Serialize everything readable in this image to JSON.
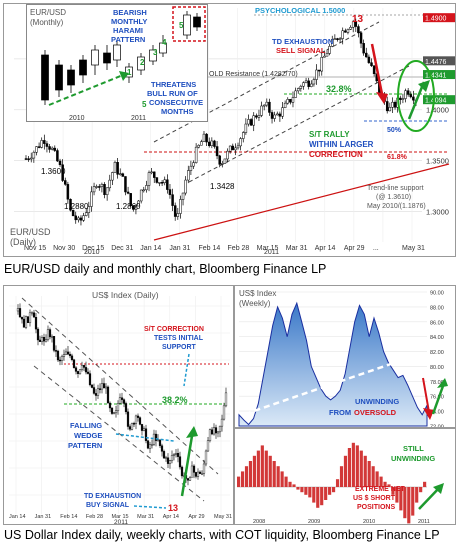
{
  "captions": {
    "top": "EUR/USD daily and monthly chart, Bloomberg Finance LP",
    "bottom": "US Dollar Index daily, weekly charts, with COT liquidity, Bloomberg Finance LP"
  },
  "colors": {
    "up_candle": "#ffffff",
    "down_candle": "#000000",
    "annotation_blue": "#1f4fbf",
    "annotation_red": "#d4141c",
    "annotation_green": "#1e9a2e",
    "fib_green": "#22aa22",
    "support_red": "#cc1111"
  },
  "chart_data": [
    {
      "id": "eurusd-daily",
      "type": "candlestick",
      "title": "",
      "corner_label": [
        "EUR/USD",
        "(Daily)"
      ],
      "x_tick_labels": [
        "Nov 15",
        "Nov 30",
        "Dec 15",
        "Dec 31",
        "Jan 14",
        "Jan 31",
        "Feb 14",
        "Feb 28",
        "Mar 15",
        "Mar 31",
        "Apr 14",
        "Apr 29",
        "...",
        "May 31"
      ],
      "year_labels": [
        "2010",
        "2011"
      ],
      "y_tick_labels": [
        "1.3000",
        "1.3500",
        "1.4000",
        "1.4500"
      ],
      "right_price_tags": [
        "1.4900",
        "1.4476",
        "1.4341",
        "1.4094"
      ],
      "ylim": [
        1.27,
        1.5
      ],
      "series_close_path": [
        1.352,
        1.36,
        1.372,
        1.36,
        1.34,
        1.3,
        1.288,
        1.305,
        1.33,
        1.32,
        1.345,
        1.33,
        1.3,
        1.32,
        1.338,
        1.331,
        1.325,
        1.29,
        1.33,
        1.355,
        1.372,
        1.365,
        1.348,
        1.36,
        1.37,
        1.385,
        1.395,
        1.405,
        1.392,
        1.4,
        1.412,
        1.425,
        1.428,
        1.44,
        1.458,
        1.47,
        1.48,
        1.488,
        1.46,
        1.44,
        1.415,
        1.4,
        1.408,
        1.42,
        1.412
      ],
      "price_labels": [
        "1.3600",
        "1.2880",
        "1.2860",
        "1.3428"
      ],
      "annotations": [
        "PSYCHOLOGICAL 1.5000",
        "TD EXHAUSTION SELL SIGNAL",
        "OLD Resistance (1.4282/70)",
        "32.8%",
        "50%",
        "61.8%",
        "S/T RALLY WITHIN LARGER CORRECTION",
        "Trend-line support (@ 1.3610) May 2010/(1.1876)",
        "13"
      ]
    },
    {
      "id": "eurusd-monthly",
      "type": "candlestick",
      "corner_label": [
        "EUR/USD",
        "(Monthly)"
      ],
      "x_tick_labels": [
        "2010",
        "2011"
      ],
      "count_labels": [
        "1",
        "2",
        "3",
        "4",
        "5",
        "5"
      ],
      "annotations": [
        "BEARISH MONTHLY HARAMI PATTERN",
        "THREATENS BULL RUN OF CONSECUTIVE MONTHS"
      ]
    },
    {
      "id": "dxy-daily",
      "type": "candlestick",
      "corner_label": [
        "US$ Index (Daily)"
      ],
      "x_tick_labels": [
        "Jan 14",
        "Jan 31",
        "Feb 14",
        "Feb 28",
        "Mar 15",
        "Mar 31",
        "Apr 14",
        "Apr 29",
        "May 31"
      ],
      "year_label": "2011",
      "annotations": [
        "S/T CORRECTION TESTS INITIAL SUPPORT",
        "38.2%",
        "FALLING WEDGE PATTERN",
        "TD EXHAUSTION BUY SIGNAL",
        "13"
      ]
    },
    {
      "id": "dxy-weekly",
      "type": "area",
      "corner_label": [
        "US$ Index",
        "(Weekly)"
      ],
      "y_tick_labels": [
        "90.00",
        "88.00",
        "86.00",
        "84.00",
        "82.00",
        "80.00",
        "78.00",
        "76.00",
        "74.00",
        "72.00"
      ],
      "x_tick_labels": [
        "Jan",
        "Apr",
        "Jul",
        "Oct",
        "Jan",
        "Apr",
        "Jul",
        "Oct",
        "Jan",
        "Apr",
        "Jul",
        "Oct",
        "Jan",
        "Apr"
      ],
      "year_labels": [
        "2008",
        "2009",
        "2010",
        "2011"
      ],
      "values": [
        73.5,
        72.8,
        72.2,
        73.0,
        75.0,
        78.5,
        82.0,
        85.5,
        88.0,
        86.5,
        84.0,
        87.0,
        88.5,
        86.0,
        83.5,
        80.0,
        78.5,
        77.0,
        76.0,
        75.5,
        76.0,
        76.8,
        79.0,
        82.5,
        86.0,
        88.2,
        87.0,
        84.0,
        86.5,
        84.5,
        82.0,
        80.5,
        79.5,
        78.5,
        78.8,
        77.5,
        76.0,
        74.5,
        73.5,
        74.8
      ],
      "annotations": [
        "UNWINDING FROM OVERSOLD"
      ]
    },
    {
      "id": "cot-liquidity",
      "type": "bar",
      "values": [
        4,
        6,
        8,
        10,
        12,
        14,
        16,
        14,
        12,
        10,
        8,
        6,
        4,
        2,
        1,
        -1,
        -2,
        -3,
        -4,
        -6,
        -8,
        -7,
        -5,
        -3,
        -2,
        3,
        8,
        12,
        15,
        17,
        16,
        14,
        12,
        10,
        8,
        6,
        4,
        2,
        1,
        -3,
        -6,
        -9,
        -12,
        -14,
        -11,
        -6,
        -2,
        2
      ],
      "annotations": [
        "STILL UNWINDING",
        "EXTREME NET US $ SHORT POSITIONS"
      ]
    }
  ]
}
